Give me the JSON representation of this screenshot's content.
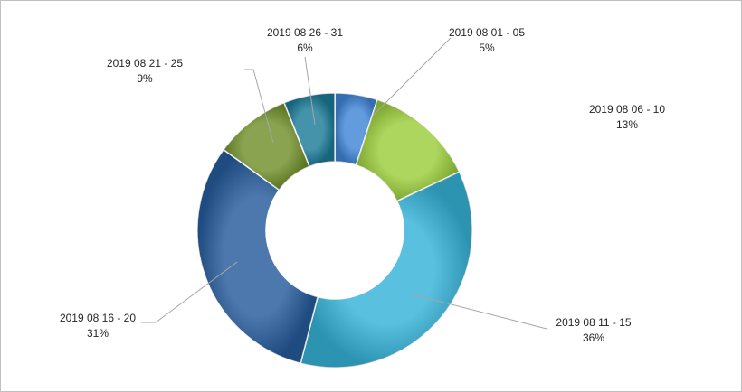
{
  "chart_data": {
    "type": "pie",
    "variant": "doughnut",
    "legend": "none",
    "labels": [
      "2019 08 01 - 05",
      "2019 08 06 - 10",
      "2019 08 11 - 15",
      "2019 08 16 - 20",
      "2019 08 21 - 25",
      "2019 08 26 - 31"
    ],
    "values": [
      5,
      13,
      36,
      31,
      9,
      6
    ],
    "value_labels": [
      "5%",
      "13%",
      "36%",
      "31%",
      "9%",
      "6%"
    ],
    "colors": [
      "#3f86d6",
      "#9acd3a",
      "#35b3d8",
      "#255b9c",
      "#6f8f2a",
      "#1b7b97"
    ]
  }
}
